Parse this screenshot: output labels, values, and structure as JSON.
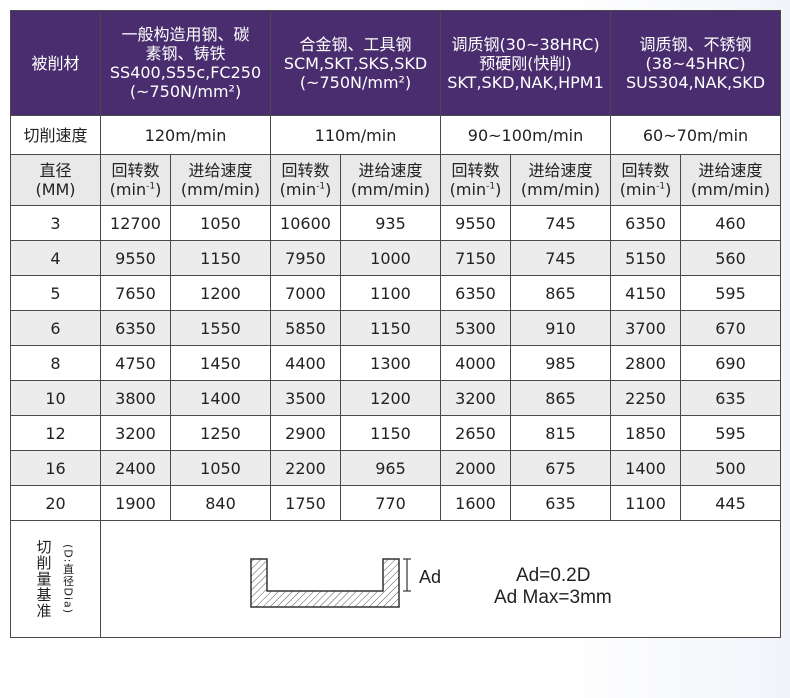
{
  "header": {
    "material_label": "被削材",
    "groups": [
      {
        "lines": [
          "一般构造用钢、碳",
          "素钢、铸铁",
          "SS400,S55c,FC250",
          "(~750N/mm²)"
        ]
      },
      {
        "lines": [
          "合金钢、工具钢",
          "SCM,SKT,SKS,SKD",
          "(~750N/mm²)"
        ]
      },
      {
        "lines": [
          "调质钢(30~38HRC)",
          "预硬刚(快削)",
          "SKT,SKD,NAK,HPM1"
        ]
      },
      {
        "lines": [
          "调质钢、不锈钢",
          "(38~45HRC)",
          "SUS304,NAK,SKD"
        ]
      }
    ]
  },
  "speed": {
    "label": "切削速度",
    "values": [
      "120m/min",
      "110m/min",
      "90~100m/min",
      "60~70m/min"
    ]
  },
  "subheader": {
    "diameter_lines": [
      "直径",
      "(MM)"
    ],
    "rpm_lines": [
      "回转数",
      "(min",
      "-1",
      ")"
    ],
    "feed_lines": [
      "进给速度",
      "(mm/min)"
    ]
  },
  "rows": [
    {
      "d": "3",
      "v": [
        "12700",
        "1050",
        "10600",
        "935",
        "9550",
        "745",
        "6350",
        "460"
      ]
    },
    {
      "d": "4",
      "v": [
        "9550",
        "1150",
        "7950",
        "1000",
        "7150",
        "745",
        "5150",
        "560"
      ]
    },
    {
      "d": "5",
      "v": [
        "7650",
        "1200",
        "7000",
        "1100",
        "6350",
        "865",
        "4150",
        "595"
      ]
    },
    {
      "d": "6",
      "v": [
        "6350",
        "1550",
        "5850",
        "1150",
        "5300",
        "910",
        "3700",
        "670"
      ]
    },
    {
      "d": "8",
      "v": [
        "4750",
        "1450",
        "4400",
        "1300",
        "4000",
        "985",
        "2800",
        "690"
      ]
    },
    {
      "d": "10",
      "v": [
        "3800",
        "1400",
        "3500",
        "1200",
        "3200",
        "865",
        "2250",
        "635"
      ]
    },
    {
      "d": "12",
      "v": [
        "3200",
        "1250",
        "2900",
        "1150",
        "2650",
        "815",
        "1850",
        "595"
      ]
    },
    {
      "d": "16",
      "v": [
        "2400",
        "1050",
        "2200",
        "965",
        "2000",
        "675",
        "1400",
        "500"
      ]
    },
    {
      "d": "20",
      "v": [
        "1900",
        "840",
        "1750",
        "770",
        "1600",
        "635",
        "1100",
        "445"
      ]
    }
  ],
  "basis": {
    "label": "切削量基准",
    "sublabel": "(D:直径Dia)",
    "ad_mark": "Ad",
    "formula1": "Ad=0.2D",
    "formula2": "Ad Max=3mm"
  }
}
